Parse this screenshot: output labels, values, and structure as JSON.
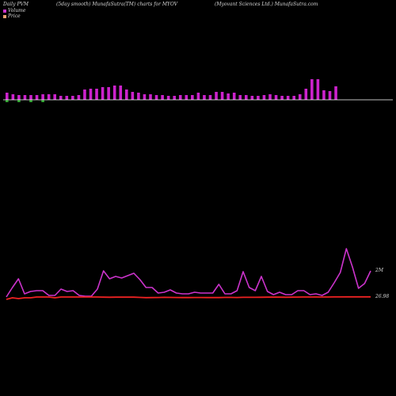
{
  "header": {
    "left": "Daily PVM",
    "center": "(5day smooth) MunafaSutra(TM) charts for MYOV",
    "right": "(Myovant Sciences Ltd.) MunafaSutra.com"
  },
  "legend": {
    "volume_label": "Volume",
    "price_label": "Price",
    "volume_color": "#cc33cc",
    "price_color": "#e8a070"
  },
  "chart_data": [
    {
      "type": "bar",
      "series": [
        {
          "values": [
            9,
            7,
            6,
            6,
            6,
            6,
            7,
            7,
            7,
            5,
            5,
            5,
            6,
            13,
            14,
            14,
            16,
            16,
            18,
            18,
            13,
            10,
            9,
            7,
            7,
            6,
            6,
            5,
            5,
            6,
            6,
            6,
            9,
            6,
            6,
            10,
            10,
            8,
            9,
            6,
            6,
            5,
            5,
            6,
            7,
            6,
            5,
            5,
            5,
            7,
            14,
            26,
            26,
            12,
            11,
            17
          ],
          "negative_indices": [
            0,
            2,
            4,
            6
          ]
        }
      ],
      "colors": {
        "positive": "#cc22cc",
        "negative": "#33aa33",
        "baseline": "#ffffff"
      }
    },
    {
      "type": "line",
      "y_labels": {
        "volume_end": "2M",
        "price_end": "26.98"
      },
      "series": [
        {
          "color": "#cc33cc",
          "values": [
            2,
            14,
            25,
            6,
            9,
            10,
            10,
            4,
            4,
            12,
            9,
            10,
            4,
            3,
            3,
            12,
            35,
            25,
            28,
            26,
            29,
            32,
            24,
            14,
            14,
            7,
            8,
            11,
            7,
            6,
            6,
            8,
            7,
            7,
            7,
            18,
            6,
            6,
            10,
            34,
            14,
            10,
            28,
            9,
            5,
            8,
            5,
            5,
            10,
            10,
            5,
            6,
            4,
            8,
            20,
            33,
            63,
            40,
            13,
            19,
            35
          ]
        },
        {
          "color": "#ee2222",
          "values": [
            0,
            2,
            1,
            2,
            2,
            3,
            3,
            3,
            2,
            3,
            3,
            3,
            3,
            3,
            3,
            3,
            2.8,
            2.7,
            2.8,
            2.8,
            2.9,
            2.8,
            2.5,
            2.2,
            2.3,
            2.4,
            2.6,
            2.5,
            2.4,
            2.3,
            2.3,
            2.4,
            2.4,
            2.3,
            2.4,
            2.3,
            2.5,
            2.5,
            2.4,
            2.6,
            2.6,
            2.6,
            2.7,
            2.8,
            2.8,
            2.8,
            2.7,
            2.8,
            2.9,
            3,
            3,
            3,
            3,
            3,
            3.1,
            3.1,
            3.2,
            3.2,
            3.2,
            3.2,
            3.2
          ]
        }
      ]
    }
  ]
}
